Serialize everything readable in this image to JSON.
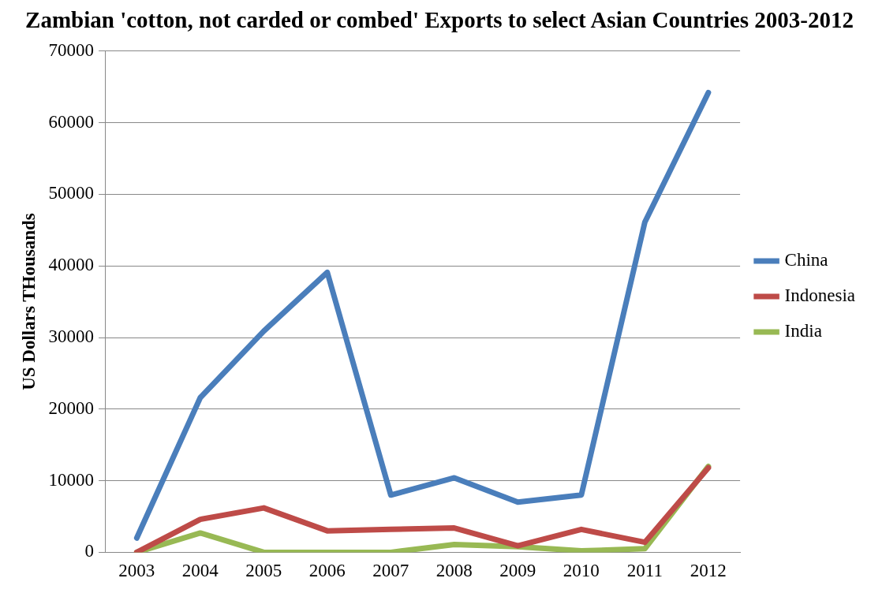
{
  "chart_data": {
    "type": "line",
    "title": "Zambian 'cotton, not carded or combed' Exports to select Asian Countries 2003-2012",
    "ylabel": "US Dollars THousands",
    "categories": [
      "2003",
      "2004",
      "2005",
      "2006",
      "2007",
      "2008",
      "2009",
      "2010",
      "2011",
      "2012"
    ],
    "series": [
      {
        "name": "China",
        "color": "#4a7ebb",
        "values": [
          2000,
          21600,
          30900,
          39100,
          8000,
          10400,
          7000,
          8000,
          46100,
          64200
        ]
      },
      {
        "name": "Indonesia",
        "color": "#be4b48",
        "values": [
          0,
          4600,
          6200,
          3000,
          3200,
          3400,
          900,
          3200,
          1400,
          11800
        ]
      },
      {
        "name": "India",
        "color": "#98b954",
        "values": [
          0,
          2700,
          0,
          0,
          0,
          1100,
          800,
          200,
          500,
          12000
        ]
      }
    ],
    "ylim": [
      0,
      70000
    ],
    "yticks": [
      0,
      10000,
      20000,
      30000,
      40000,
      50000,
      60000,
      70000
    ],
    "grid": "y",
    "legend": "right",
    "marker": "none",
    "line_style": "solid"
  }
}
